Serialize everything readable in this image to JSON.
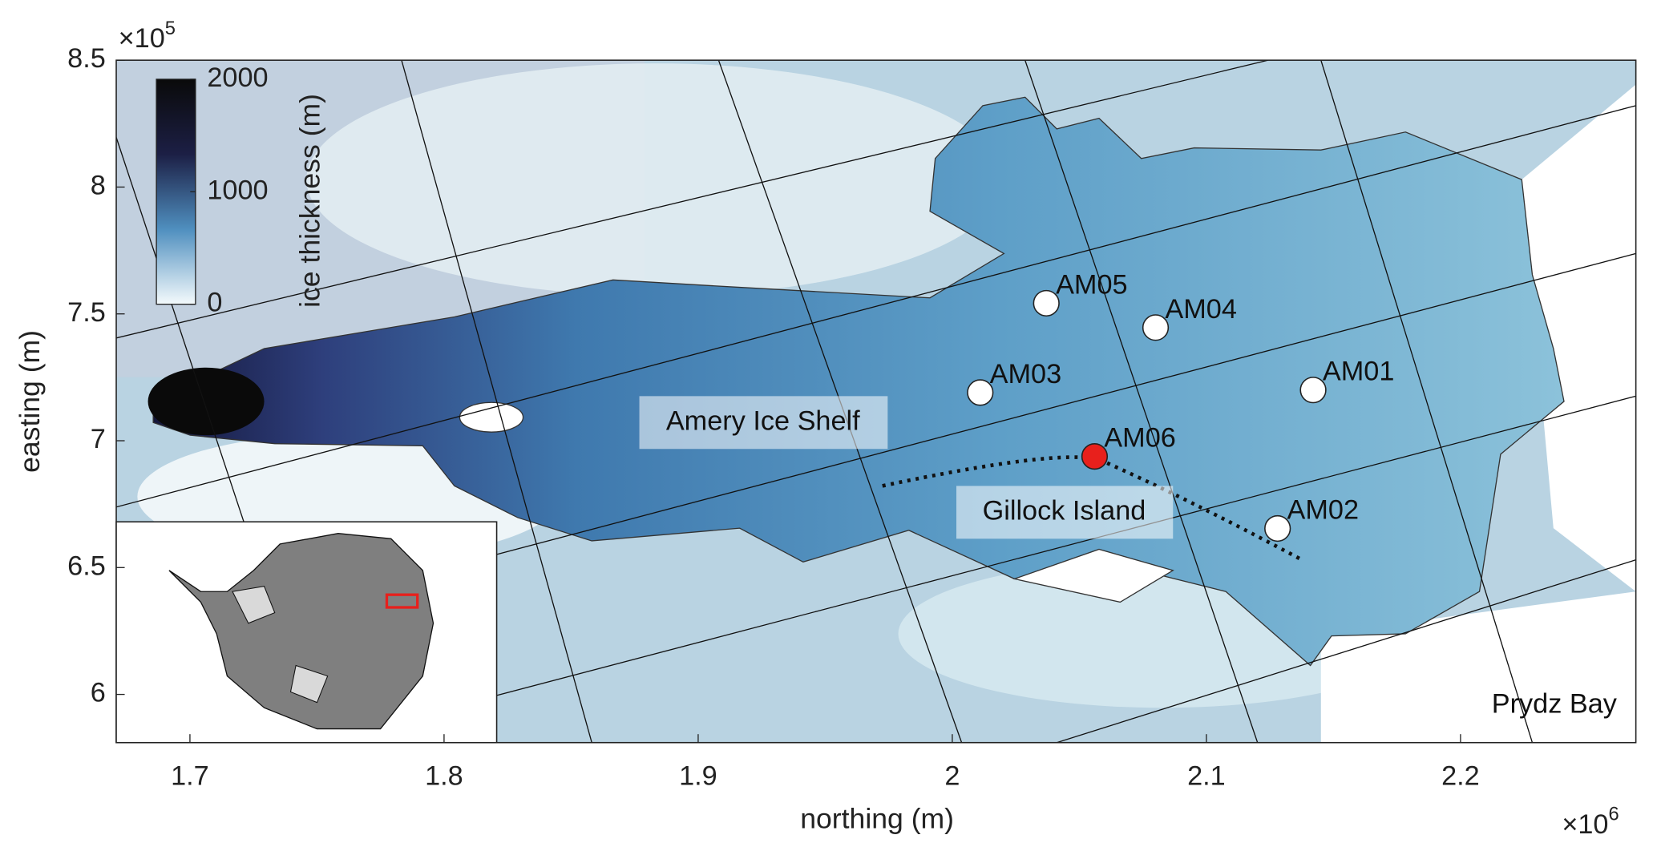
{
  "chart_data": {
    "type": "map",
    "xlabel": "northing (m)",
    "ylabel": "easting (m)",
    "x_multiplier": {
      "base": "×10",
      "exponent": "6"
    },
    "y_multiplier": {
      "base": "×10",
      "exponent": "5"
    },
    "xlim": [
      1.671,
      2.269
    ],
    "ylim": [
      5.81,
      8.5
    ],
    "xticks": [
      1.7,
      1.8,
      1.9,
      2,
      2.1,
      2.2
    ],
    "yticks": [
      6,
      6.5,
      7,
      7.5,
      8,
      8.5
    ],
    "colorbar": {
      "label": "ice thickness (m)",
      "clim": [
        0,
        2000
      ],
      "ticks": [
        0,
        1000,
        2000
      ],
      "colors": [
        "#f4fafc",
        "#4f8fbf",
        "#1c1f45",
        "#0a0a0a"
      ]
    },
    "stations": [
      {
        "name": "AM05",
        "x": 2.037,
        "y": 7.542,
        "color": "#ffffff"
      },
      {
        "name": "AM04",
        "x": 2.08,
        "y": 7.446,
        "color": "#ffffff"
      },
      {
        "name": "AM03",
        "x": 2.011,
        "y": 7.19,
        "color": "#ffffff"
      },
      {
        "name": "AM01",
        "x": 2.142,
        "y": 7.2,
        "color": "#ffffff"
      },
      {
        "name": "AM06",
        "x": 2.056,
        "y": 6.938,
        "color": "#e8201c"
      },
      {
        "name": "AM02",
        "x": 2.128,
        "y": 6.654,
        "color": "#ffffff"
      }
    ],
    "annotations": [
      "Amery Ice Shelf",
      "Gillock Island",
      "Prydz Bay"
    ]
  }
}
